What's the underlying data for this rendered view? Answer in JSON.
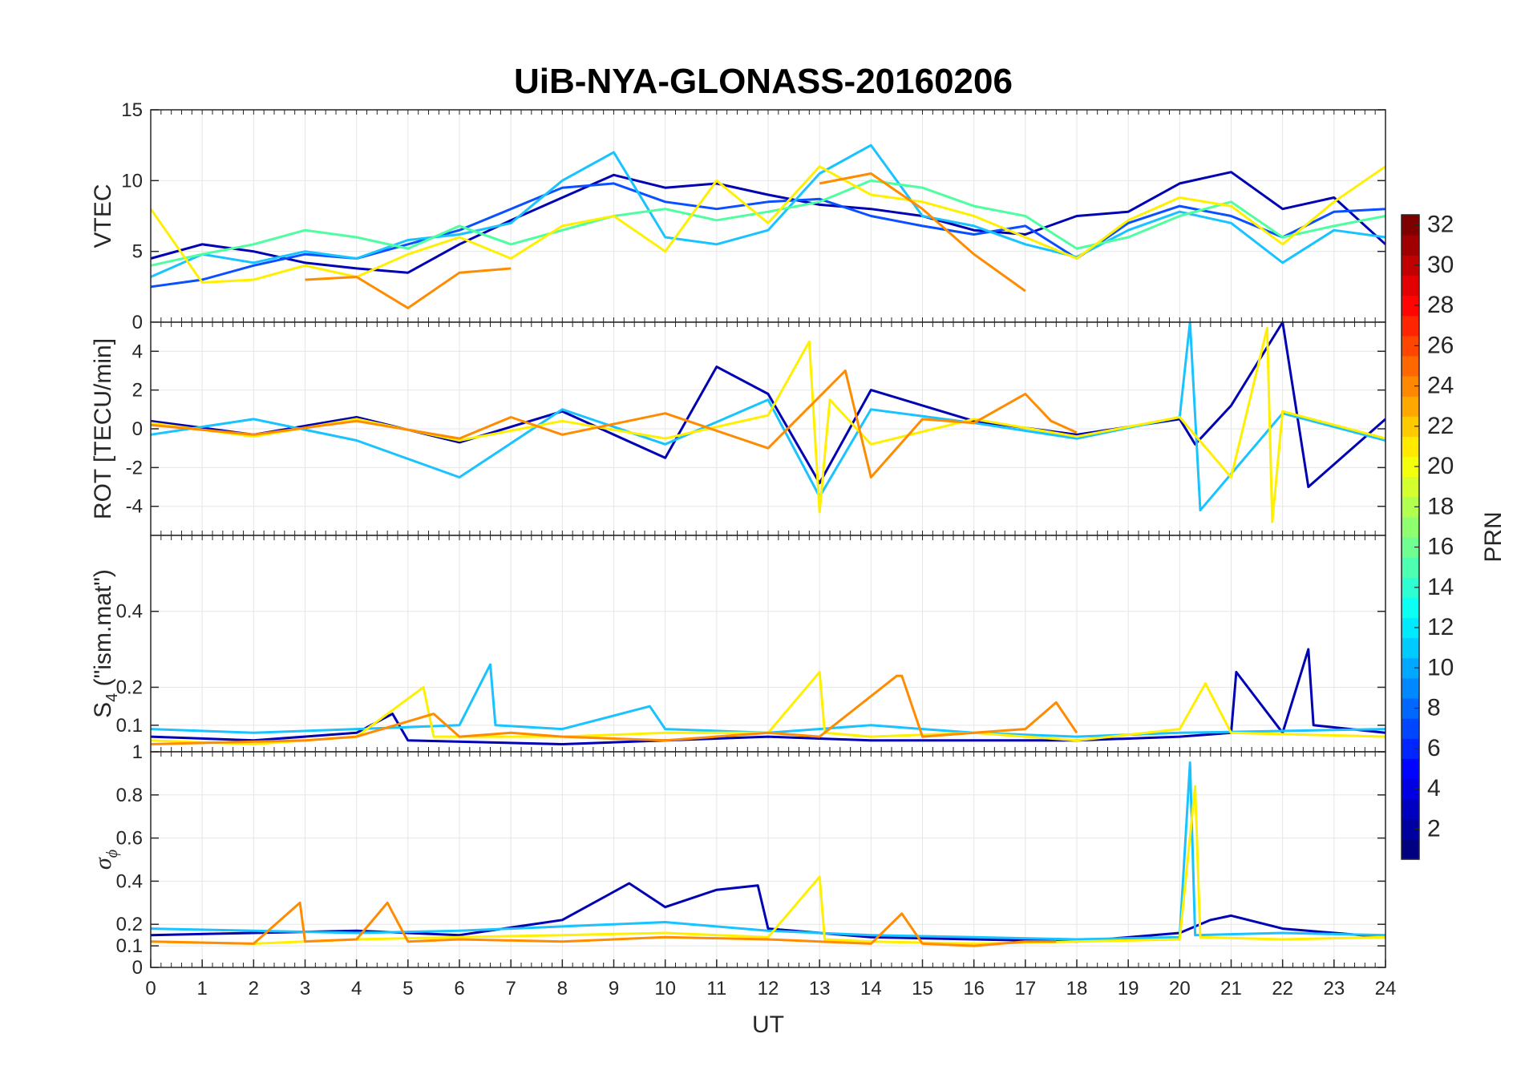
{
  "chart_data": {
    "type": "line",
    "title": "UiB-NYA-GLONASS-20160206",
    "xlabel": "UT",
    "x_range": [
      0,
      24
    ],
    "x_ticks": [
      "0",
      "1",
      "2",
      "3",
      "4",
      "5",
      "6",
      "7",
      "8",
      "9",
      "10",
      "11",
      "12",
      "13",
      "14",
      "15",
      "16",
      "17",
      "18",
      "19",
      "20",
      "21",
      "22",
      "23",
      "24"
    ],
    "grid": true,
    "panels": [
      {
        "id": "vtec",
        "ylabel": "VTEC",
        "ylim": [
          0,
          15
        ],
        "y_ticks": [
          "0",
          "5",
          "10",
          "15"
        ],
        "series": [
          {
            "color": "#0000b4",
            "x": [
              0,
              1,
              2,
              3,
              4,
              5,
              6,
              7,
              8,
              9,
              10,
              11,
              12,
              13,
              14,
              15,
              16,
              17,
              18,
              19,
              20,
              21,
              22,
              23,
              24
            ],
            "values": [
              4.5,
              5.5,
              5,
              4.2,
              3.8,
              3.5,
              5.5,
              7.2,
              8.8,
              10.4,
              9.5,
              9.8,
              9.0,
              8.3,
              8.0,
              7.5,
              6.5,
              6.2,
              7.5,
              7.8,
              9.8,
              10.6,
              8.0,
              8.8,
              5.5
            ]
          },
          {
            "color": "#0a50ff",
            "x": [
              0,
              1,
              2,
              3,
              4,
              5,
              6,
              7,
              8,
              9,
              10,
              11,
              12,
              13,
              14,
              15,
              16,
              17,
              18,
              19,
              20,
              21,
              22,
              23,
              24
            ],
            "values": [
              2.5,
              3,
              4,
              4.8,
              4.5,
              5.5,
              6.5,
              8,
              9.5,
              9.8,
              8.5,
              8.0,
              8.5,
              8.7,
              7.5,
              6.8,
              6.2,
              6.8,
              4.5,
              7.0,
              8.2,
              7.5,
              6.0,
              7.8,
              8.0
            ]
          },
          {
            "color": "#19c3ff",
            "x": [
              0,
              1,
              2,
              3,
              4,
              5,
              6,
              7,
              8,
              9,
              10,
              11,
              12,
              13,
              14,
              15,
              16,
              17,
              18,
              19,
              20,
              21,
              22,
              23,
              24
            ],
            "values": [
              3.2,
              4.8,
              4.2,
              5.0,
              4.5,
              5.8,
              6.2,
              7.0,
              10.0,
              12.0,
              6.0,
              5.5,
              6.5,
              10.5,
              12.5,
              7.5,
              6.8,
              5.5,
              4.6,
              6.5,
              7.8,
              7.0,
              4.2,
              6.5,
              6.0
            ]
          },
          {
            "color": "#4dff9e",
            "x": [
              0,
              1,
              2,
              3,
              4,
              5,
              6,
              7,
              8,
              9,
              10,
              11,
              12,
              13,
              14,
              15,
              16,
              17,
              18,
              19,
              20,
              21,
              22,
              23,
              24
            ],
            "values": [
              4.0,
              4.8,
              5.5,
              6.5,
              6.0,
              5.2,
              6.8,
              5.5,
              6.5,
              7.5,
              8.0,
              7.2,
              7.8,
              8.5,
              10.0,
              9.5,
              8.2,
              7.5,
              5.2,
              6.0,
              7.5,
              8.5,
              6.0,
              6.8,
              7.5
            ]
          },
          {
            "color": "#ffef00",
            "x": [
              0,
              1,
              2,
              3,
              4,
              5,
              6,
              7,
              8,
              9,
              10,
              11,
              12,
              13,
              14,
              15,
              16,
              17,
              18,
              19,
              20,
              21,
              22,
              23,
              24
            ],
            "values": [
              8.0,
              2.8,
              3.0,
              4.0,
              3.2,
              4.8,
              6.0,
              4.5,
              6.8,
              7.5,
              5.0,
              10.0,
              7.0,
              11.0,
              9.0,
              8.5,
              7.5,
              6.0,
              4.5,
              7.2,
              8.8,
              8.2,
              5.5,
              8.5,
              11.0
            ]
          },
          {
            "color": "#ff8c00",
            "x": [
              0,
              1,
              2,
              3,
              4,
              5,
              6,
              7,
              8,
              9,
              10,
              11,
              12,
              13,
              14,
              15,
              16,
              17,
              18,
              19,
              20,
              21,
              22,
              23,
              24
            ],
            "values": [
              null,
              null,
              null,
              3.0,
              3.2,
              1.0,
              3.5,
              3.8,
              null,
              null,
              null,
              null,
              null,
              9.8,
              10.5,
              8.0,
              4.8,
              2.2,
              null,
              null,
              null,
              null,
              null,
              null,
              null
            ]
          }
        ]
      },
      {
        "id": "rot",
        "ylabel": "ROT [TECU/min]",
        "ylim": [
          -5.5,
          5.5
        ],
        "y_ticks": [
          "-4",
          "-2",
          "0",
          "2",
          "4"
        ],
        "series": [
          {
            "color": "#0000b4",
            "x": [
              0,
              2,
              4,
              6,
              8,
              10,
              11,
              12,
              13,
              14,
              16,
              18,
              20,
              20.3,
              21,
              22,
              22.5,
              24
            ],
            "values": [
              0.4,
              -0.3,
              0.6,
              -0.7,
              0.9,
              -1.5,
              3.2,
              1.8,
              -2.8,
              2.0,
              0.4,
              -0.3,
              0.5,
              -0.8,
              1.2,
              5.5,
              -3.0,
              0.5
            ]
          },
          {
            "color": "#19c3ff",
            "x": [
              0,
              2,
              4,
              6,
              8,
              10,
              12,
              13,
              14,
              16,
              18,
              20,
              20.2,
              20.4,
              22,
              24
            ],
            "values": [
              -0.3,
              0.5,
              -0.6,
              -2.5,
              1.0,
              -0.8,
              1.5,
              -3.5,
              1.0,
              0.3,
              -0.5,
              0.6,
              5.5,
              -4.2,
              0.8,
              -0.6
            ]
          },
          {
            "color": "#ffef00",
            "x": [
              0,
              2,
              4,
              6,
              8,
              10,
              12,
              12.8,
              13,
              13.2,
              14,
              16,
              18,
              20,
              21,
              21.7,
              21.8,
              22,
              24
            ],
            "values": [
              0.3,
              -0.4,
              0.5,
              -0.6,
              0.4,
              -0.5,
              0.7,
              4.5,
              -4.3,
              1.5,
              -0.8,
              0.5,
              -0.4,
              0.6,
              -2.5,
              5.2,
              -4.8,
              0.9,
              -0.5
            ]
          },
          {
            "color": "#ff8c00",
            "x": [
              0,
              2,
              4,
              6,
              7,
              8,
              10,
              12,
              13.5,
              14,
              15,
              16,
              17,
              17.5,
              18
            ],
            "values": [
              0.2,
              -0.3,
              0.4,
              -0.5,
              0.6,
              -0.3,
              0.8,
              -1.0,
              3.0,
              -2.5,
              0.5,
              0.3,
              1.8,
              0.4,
              -0.2
            ]
          }
        ]
      },
      {
        "id": "s4",
        "ylabel": "S",
        "ylabel_subscript": "4",
        "ylabel_suffix": " (\"ism.mat\")",
        "ylim": [
          0.03,
          0.6
        ],
        "y_ticks": [
          "0.1",
          "0.2",
          "0.4"
        ],
        "series": [
          {
            "color": "#0000b4",
            "x": [
              0,
              2,
              4,
              4.7,
              5,
              8,
              10,
              12,
              14,
              18,
              20,
              21,
              21.1,
              22,
              22.5,
              22.6,
              24
            ],
            "values": [
              0.07,
              0.06,
              0.08,
              0.13,
              0.06,
              0.05,
              0.06,
              0.07,
              0.06,
              0.06,
              0.07,
              0.08,
              0.24,
              0.08,
              0.3,
              0.1,
              0.08
            ]
          },
          {
            "color": "#19c3ff",
            "x": [
              0,
              2,
              4,
              6,
              6.6,
              6.7,
              8,
              9.7,
              10,
              12,
              14,
              16,
              18,
              20,
              24
            ],
            "values": [
              0.09,
              0.08,
              0.09,
              0.1,
              0.26,
              0.1,
              0.09,
              0.15,
              0.09,
              0.08,
              0.1,
              0.08,
              0.07,
              0.08,
              0.09
            ]
          },
          {
            "color": "#ffef00",
            "x": [
              0,
              2,
              4,
              5.3,
              5.5,
              8,
              10,
              12,
              13,
              13.1,
              14,
              16,
              18,
              20,
              20.5,
              21,
              24
            ],
            "values": [
              0.06,
              0.05,
              0.07,
              0.2,
              0.07,
              0.07,
              0.08,
              0.08,
              0.24,
              0.08,
              0.07,
              0.08,
              0.06,
              0.09,
              0.21,
              0.08,
              0.07
            ]
          },
          {
            "color": "#ff8c00",
            "x": [
              0,
              3,
              4,
              5.5,
              6,
              7,
              8,
              10,
              12,
              13,
              14.5,
              14.6,
              15,
              16,
              17,
              17.6,
              18
            ],
            "values": [
              0.05,
              0.06,
              0.07,
              0.13,
              0.07,
              0.08,
              0.07,
              0.06,
              0.08,
              0.07,
              0.23,
              0.23,
              0.07,
              0.08,
              0.09,
              0.16,
              0.08
            ]
          }
        ]
      },
      {
        "id": "sigma_phi",
        "ylabel": "σ",
        "ylabel_subscript": "ϕ",
        "ylim": [
          0,
          1
        ],
        "y_ticks": [
          "0",
          "0.1",
          "0.2",
          "0.4",
          "0.6",
          "0.8",
          "1"
        ],
        "series": [
          {
            "color": "#0000b4",
            "x": [
              0,
              2,
              4,
              6,
              8,
              9.3,
              10,
              11,
              11.8,
              12,
              14,
              16,
              18,
              20,
              20.6,
              21,
              22,
              24
            ],
            "values": [
              0.15,
              0.16,
              0.17,
              0.15,
              0.22,
              0.39,
              0.28,
              0.36,
              0.38,
              0.18,
              0.14,
              0.13,
              0.12,
              0.16,
              0.22,
              0.24,
              0.18,
              0.14
            ]
          },
          {
            "color": "#19c3ff",
            "x": [
              0,
              2,
              4,
              6,
              8,
              10,
              12,
              14,
              16,
              18,
              20,
              20.2,
              20.3,
              22,
              24
            ],
            "values": [
              0.18,
              0.17,
              0.16,
              0.17,
              0.19,
              0.21,
              0.17,
              0.15,
              0.14,
              0.13,
              0.14,
              0.95,
              0.15,
              0.16,
              0.15
            ]
          },
          {
            "color": "#ffef00",
            "x": [
              0,
              2,
              4,
              6,
              8,
              10,
              12,
              13,
              13.1,
              14,
              16,
              18,
              20,
              20.3,
              20.4,
              22,
              24
            ],
            "values": [
              0.12,
              0.11,
              0.13,
              0.14,
              0.15,
              0.16,
              0.14,
              0.42,
              0.13,
              0.12,
              0.11,
              0.12,
              0.13,
              0.84,
              0.14,
              0.13,
              0.14
            ]
          },
          {
            "color": "#ff8c00",
            "x": [
              0,
              2,
              2.9,
              3,
              4,
              4.6,
              5,
              6,
              8,
              10,
              12,
              14,
              14.6,
              15,
              16,
              17,
              17.6
            ],
            "values": [
              0.12,
              0.11,
              0.3,
              0.12,
              0.13,
              0.3,
              0.12,
              0.13,
              0.12,
              0.14,
              0.13,
              0.11,
              0.25,
              0.11,
              0.1,
              0.12,
              0.12
            ]
          }
        ]
      }
    ],
    "colorbar": {
      "label": "PRN",
      "ticks": [
        "2",
        "4",
        "6",
        "8",
        "10",
        "12",
        "14",
        "16",
        "18",
        "20",
        "22",
        "24",
        "26",
        "28",
        "30",
        "32"
      ],
      "range": [
        1,
        32
      ],
      "colormap": "jet"
    }
  }
}
